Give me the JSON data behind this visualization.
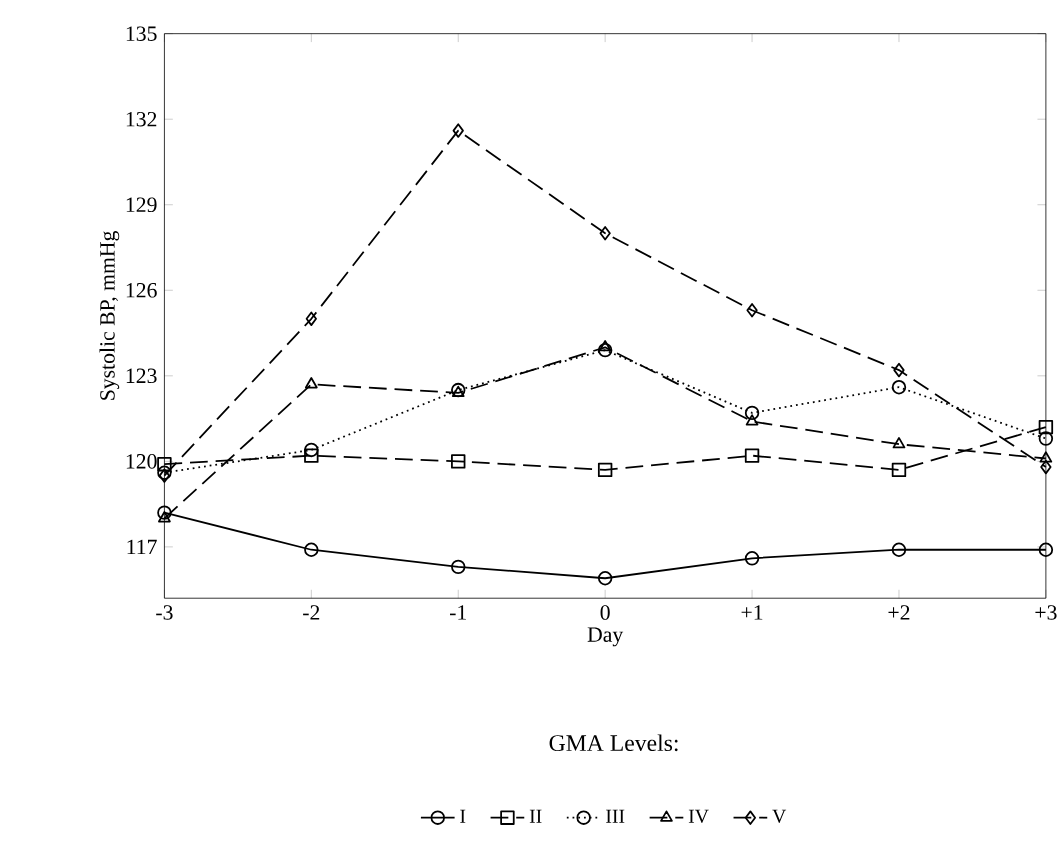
{
  "chart_data": {
    "type": "line",
    "xlabel": "Day",
    "ylabel": "Systolic BP, mmHg",
    "legend_title": "GMA Levels:",
    "legend": "bottom",
    "x": [
      -3,
      -2,
      -1,
      0,
      1,
      2,
      3
    ],
    "xlim": [
      -3,
      3
    ],
    "ylim": [
      115.2,
      135
    ],
    "xticks": [
      -3,
      -2,
      -1,
      0,
      {
        "value": 1,
        "label": "+1"
      },
      {
        "value": 2,
        "label": "+2"
      },
      {
        "value": 3,
        "label": "+3"
      }
    ],
    "yticks": [
      117,
      120,
      123,
      126,
      129,
      132,
      135
    ],
    "grid": false,
    "series": [
      {
        "name": "I",
        "color": "#000000",
        "marker": "circle",
        "line_style": "solid",
        "values": [
          118.2,
          116.9,
          116.3,
          115.9,
          116.6,
          116.9,
          116.9
        ]
      },
      {
        "name": "II",
        "color": "#000000",
        "marker": "square",
        "line_style": "dashed",
        "values": [
          119.9,
          120.2,
          120.0,
          119.7,
          120.2,
          119.7,
          121.2
        ]
      },
      {
        "name": "III",
        "color": "#000000",
        "marker": "circle",
        "line_style": "dotted",
        "values": [
          119.6,
          120.4,
          122.5,
          123.9,
          121.7,
          122.6,
          120.8
        ]
      },
      {
        "name": "IV",
        "color": "#000000",
        "marker": "triangle",
        "line_style": "dashed",
        "values": [
          118.0,
          122.7,
          122.4,
          124.0,
          121.4,
          120.6,
          120.1
        ]
      },
      {
        "name": "V",
        "color": "#000000",
        "marker": "diamond",
        "line_style": "dashed",
        "values": [
          119.5,
          125.0,
          131.6,
          128.0,
          125.3,
          123.2,
          119.8
        ]
      }
    ]
  }
}
